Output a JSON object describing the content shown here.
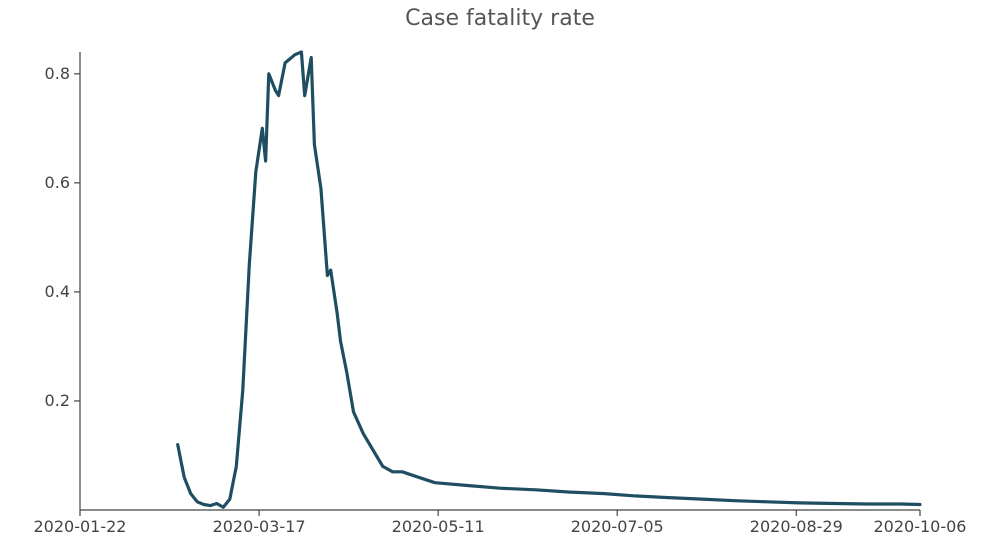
{
  "chart_data": {
    "type": "line",
    "title": "Case fatality rate",
    "xlabel": "",
    "ylabel": "",
    "x_ticks": [
      "2020-01-22",
      "2020-03-17",
      "2020-05-11",
      "2020-07-05",
      "2020-08-29",
      "2020-10-06"
    ],
    "y_ticks": [
      "0.2",
      "0.4",
      "0.6",
      "0.8"
    ],
    "y_tick_values": [
      0.2,
      0.4,
      0.6,
      0.8
    ],
    "xlim": [
      "2020-01-22",
      "2020-10-06"
    ],
    "ylim": [
      0,
      0.84
    ],
    "grid": false,
    "legend": "none",
    "color": "#1f4e63",
    "series": [
      {
        "x": [
          "2020-02-21",
          "2020-02-23",
          "2020-02-25",
          "2020-02-27",
          "2020-02-29",
          "2020-03-02",
          "2020-03-04",
          "2020-03-06",
          "2020-03-08",
          "2020-03-10",
          "2020-03-12",
          "2020-03-14",
          "2020-03-16",
          "2020-03-18",
          "2020-03-19",
          "2020-03-20",
          "2020-03-22",
          "2020-03-23",
          "2020-03-25",
          "2020-03-27",
          "2020-03-28",
          "2020-03-30",
          "2020-03-31",
          "2020-04-02",
          "2020-04-03",
          "2020-04-05",
          "2020-04-07",
          "2020-04-08",
          "2020-04-10",
          "2020-04-11",
          "2020-04-13",
          "2020-04-15",
          "2020-04-18",
          "2020-04-21",
          "2020-04-24",
          "2020-04-27",
          "2020-04-30",
          "2020-05-05",
          "2020-05-10",
          "2020-05-20",
          "2020-05-30",
          "2020-06-10",
          "2020-06-20",
          "2020-07-01",
          "2020-07-10",
          "2020-07-20",
          "2020-07-31",
          "2020-08-10",
          "2020-08-20",
          "2020-08-30",
          "2020-09-10",
          "2020-09-20",
          "2020-09-30",
          "2020-10-06"
        ],
        "values": [
          0.12,
          0.06,
          0.03,
          0.015,
          0.01,
          0.008,
          0.012,
          0.005,
          0.02,
          0.08,
          0.22,
          0.45,
          0.62,
          0.7,
          0.64,
          0.8,
          0.77,
          0.76,
          0.82,
          0.83,
          0.835,
          0.84,
          0.76,
          0.83,
          0.67,
          0.59,
          0.43,
          0.44,
          0.36,
          0.31,
          0.25,
          0.18,
          0.14,
          0.11,
          0.08,
          0.07,
          0.07,
          0.06,
          0.05,
          0.045,
          0.04,
          0.037,
          0.033,
          0.03,
          0.026,
          0.023,
          0.02,
          0.017,
          0.015,
          0.013,
          0.012,
          0.011,
          0.011,
          0.01
        ]
      }
    ]
  }
}
